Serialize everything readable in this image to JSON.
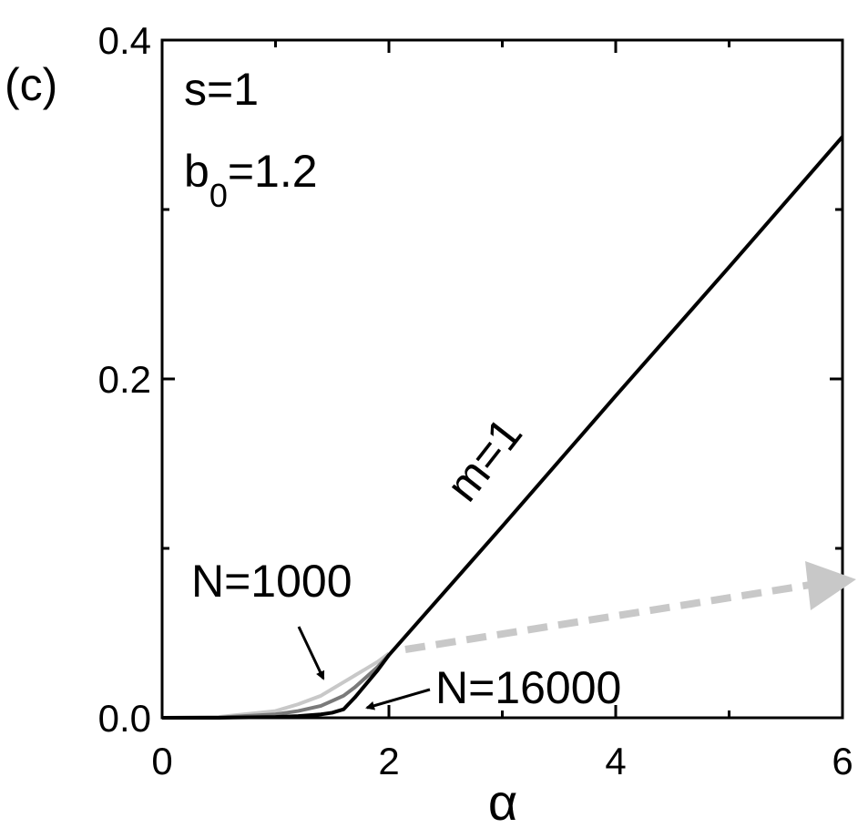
{
  "chart_data": {
    "type": "line",
    "panel_label": "(c)",
    "x_label": "α",
    "annotations": {
      "s": "s=1",
      "b0": [
        "b",
        "0",
        "=1.2"
      ],
      "m": "m=1",
      "n_low": "N=1000",
      "n_high": "N=16000"
    },
    "x": [
      0,
      0.5,
      1,
      1.2,
      1.4,
      1.5,
      1.6,
      1.7,
      1.8,
      1.9,
      2,
      3,
      4,
      5,
      6
    ],
    "series": [
      {
        "color": "#c8c8c8",
        "values": [
          0,
          0.0005,
          0.004,
          0.008,
          0.013,
          0.017,
          0.021,
          0.025,
          0.029,
          0.033,
          0.038,
          null,
          null,
          null,
          null
        ]
      },
      {
        "color": "#7a7a7a",
        "values": [
          0,
          0.0002,
          0.002,
          0.004,
          0.007,
          0.01,
          0.013,
          0.018,
          0.024,
          0.03,
          0.037,
          null,
          null,
          null,
          null
        ]
      },
      {
        "color": "#000000",
        "values": [
          0,
          0,
          0.0005,
          0.001,
          0.002,
          0.003,
          0.005,
          0.012,
          0.02,
          0.028,
          0.037,
          0.113,
          0.19,
          0.266,
          0.343
        ]
      }
    ],
    "xlim": [
      0,
      6
    ],
    "xticks": [
      0,
      2,
      4,
      6
    ],
    "xminor": [
      1,
      3,
      5
    ],
    "ylim": [
      0,
      0.4
    ],
    "yticks": [
      {
        "value": 0,
        "label": "0.0"
      },
      0.2,
      0.4
    ],
    "yminor": [
      0.1,
      0.3
    ],
    "grid": false
  }
}
